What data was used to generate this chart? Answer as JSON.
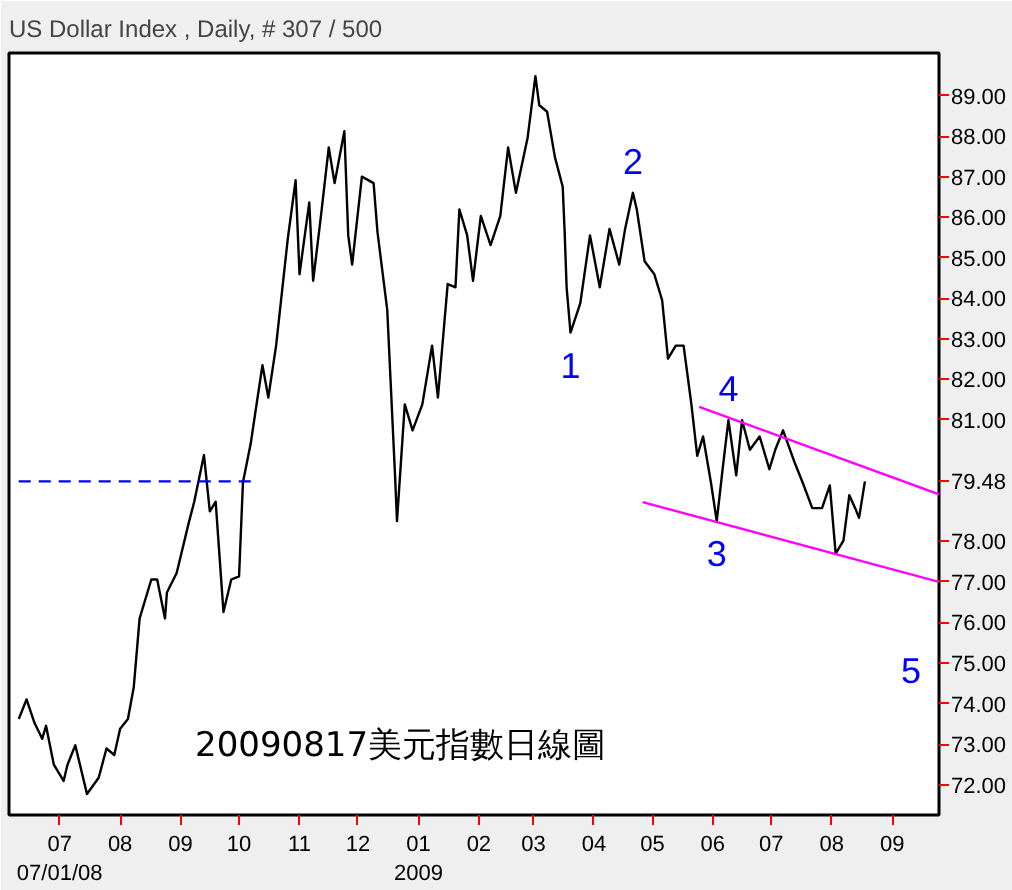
{
  "chart_data": {
    "type": "line",
    "title": "US Dollar Index , Daily, # 307 / 500",
    "x": [
      "2008-06-10",
      "2008-06-14",
      "2008-06-18",
      "2008-06-22",
      "2008-06-24",
      "2008-06-28",
      "2008-07-03",
      "2008-07-05",
      "2008-07-09",
      "2008-07-15",
      "2008-07-21",
      "2008-07-25",
      "2008-07-29",
      "2008-08-01",
      "2008-08-05",
      "2008-08-08",
      "2008-08-11",
      "2008-08-17",
      "2008-08-20",
      "2008-08-24",
      "2008-08-25",
      "2008-08-30",
      "2008-09-05",
      "2008-09-08",
      "2008-09-13",
      "2008-09-16",
      "2008-09-19",
      "2008-09-23",
      "2008-09-27",
      "2008-10-01",
      "2008-10-03",
      "2008-10-07",
      "2008-10-09",
      "2008-10-13",
      "2008-10-16",
      "2008-10-20",
      "2008-10-22",
      "2008-10-26",
      "2008-10-30",
      "2008-11-01",
      "2008-11-06",
      "2008-11-08",
      "2008-11-12",
      "2008-11-16",
      "2008-11-19",
      "2008-11-24",
      "2008-11-26",
      "2008-11-28",
      "2008-12-03",
      "2008-12-09",
      "2008-12-11",
      "2008-12-16",
      "2008-12-20",
      "2008-12-21",
      "2008-12-25",
      "2008-12-29",
      "2009-01-03",
      "2009-01-08",
      "2009-01-11",
      "2009-01-16",
      "2009-01-20",
      "2009-01-22",
      "2009-01-26",
      "2009-01-29",
      "2009-02-02",
      "2009-02-07",
      "2009-02-12",
      "2009-02-16",
      "2009-02-20",
      "2009-02-26",
      "2009-03-02",
      "2009-03-04",
      "2009-03-08",
      "2009-03-12",
      "2009-03-16",
      "2009-03-17",
      "2009-03-18",
      "2009-03-20",
      "2009-03-25",
      "2009-03-30",
      "2009-04-04",
      "2009-04-09",
      "2009-04-14",
      "2009-04-17",
      "2009-04-21",
      "2009-04-23",
      "2009-04-27",
      "2009-05-02",
      "2009-05-06",
      "2009-05-09",
      "2009-05-13",
      "2009-05-17",
      "2009-05-21",
      "2009-05-24",
      "2009-05-27",
      "2009-05-31",
      "2009-06-03",
      "2009-06-06",
      "2009-06-09",
      "2009-06-13",
      "2009-06-16",
      "2009-06-20",
      "2009-06-25",
      "2009-06-30",
      "2009-07-03",
      "2009-07-07",
      "2009-07-13",
      "2009-07-17",
      "2009-07-22",
      "2009-07-27",
      "2009-07-31",
      "2009-08-03",
      "2009-08-07",
      "2009-08-10",
      "2009-08-13",
      "2009-08-15",
      "2009-08-18"
    ],
    "series": [
      {
        "color": "#000000",
        "line_style": "solid",
        "values": [
          73.62,
          74.1,
          73.53,
          73.13,
          73.45,
          72.49,
          72.09,
          72.49,
          72.97,
          71.77,
          72.17,
          72.89,
          72.73,
          73.38,
          73.62,
          74.41,
          76.1,
          77.06,
          77.06,
          76.1,
          76.74,
          77.22,
          78.42,
          78.98,
          80.13,
          78.74,
          78.98,
          76.26,
          77.06,
          77.14,
          79.46,
          80.42,
          81.07,
          82.35,
          81.55,
          82.83,
          83.71,
          85.47,
          86.91,
          84.59,
          86.36,
          84.43,
          86.03,
          87.72,
          86.84,
          88.12,
          85.55,
          84.83,
          87.0,
          86.84,
          85.63,
          83.71,
          79.63,
          78.5,
          81.38,
          80.74,
          81.38,
          82.83,
          81.55,
          84.35,
          84.27,
          86.19,
          85.55,
          84.43,
          86.03,
          85.31,
          86.03,
          87.72,
          86.6,
          87.96,
          89.48,
          88.76,
          88.6,
          87.48,
          86.75,
          85.63,
          84.27,
          83.15,
          83.87,
          85.55,
          84.27,
          85.71,
          84.83,
          85.71,
          86.6,
          86.19,
          84.91,
          84.59,
          83.95,
          82.51,
          82.83,
          82.83,
          81.38,
          80.11,
          80.59,
          79.46,
          78.5,
          79.78,
          80.99,
          79.63,
          80.99,
          80.26,
          80.59,
          79.78,
          80.26,
          80.74,
          79.94,
          79.46,
          78.82,
          78.82,
          79.38,
          77.7,
          78.02,
          79.14,
          78.82,
          78.58,
          79.48
        ]
      },
      {
        "color": "#0000ff",
        "line_style": "dashed",
        "x": [
          "2008-06-10",
          "2008-10-08"
        ],
        "values": [
          79.48,
          79.48
        ]
      },
      {
        "color": "#ff00ff",
        "line_style": "solid",
        "x": [
          "2009-05-25",
          "2009-09-25"
        ],
        "values": [
          81.32,
          79.16
        ]
      },
      {
        "color": "#ff00ff",
        "line_style": "solid",
        "x": [
          "2009-04-26",
          "2009-09-25"
        ],
        "values": [
          78.97,
          77.0
        ]
      }
    ],
    "xlim": [
      "2008-06-05",
      "2009-09-25"
    ],
    "xticks": [
      {
        "value": "2008-07-01",
        "label": "07\n07/01/08"
      },
      {
        "value": "2008-08-01",
        "label": "08"
      },
      {
        "value": "2008-09-01",
        "label": "09"
      },
      {
        "value": "2008-10-01",
        "label": "10"
      },
      {
        "value": "2008-11-01",
        "label": "11"
      },
      {
        "value": "2008-12-01",
        "label": "12"
      },
      {
        "value": "2009-01-01",
        "label": "01\n2009"
      },
      {
        "value": "2009-02-01",
        "label": "02"
      },
      {
        "value": "2009-03-01",
        "label": "03"
      },
      {
        "value": "2009-04-01",
        "label": "04"
      },
      {
        "value": "2009-05-01",
        "label": "05"
      },
      {
        "value": "2009-06-01",
        "label": "06"
      },
      {
        "value": "2009-07-01",
        "label": "07"
      },
      {
        "value": "2009-08-01",
        "label": "08"
      },
      {
        "value": "2009-09-01",
        "label": "09"
      }
    ],
    "ylim": [
      71.25,
      90.05
    ],
    "yticks": [
      {
        "value": 72,
        "label": "72.00"
      },
      {
        "value": 73,
        "label": "73.00"
      },
      {
        "value": 74,
        "label": "74.00"
      },
      {
        "value": 75,
        "label": "75.00"
      },
      {
        "value": 76,
        "label": "76.00"
      },
      {
        "value": 77,
        "label": "77.00"
      },
      {
        "value": 78,
        "label": "78.00"
      },
      {
        "value": 79.48,
        "label": "79.48"
      },
      {
        "value": 81,
        "label": "81.00"
      },
      {
        "value": 82,
        "label": "82.00"
      },
      {
        "value": 83,
        "label": "83.00"
      },
      {
        "value": 84,
        "label": "84.00"
      },
      {
        "value": 85,
        "label": "85.00"
      },
      {
        "value": 86,
        "label": "86.00"
      },
      {
        "value": 87,
        "label": "87.00"
      },
      {
        "value": 88,
        "label": "88.00"
      },
      {
        "value": 89,
        "label": "89.00"
      }
    ],
    "annotations": [
      {
        "text": "1",
        "x": "2009-03-20",
        "y": 83.15
      },
      {
        "text": "2",
        "x": "2009-04-21",
        "y": 86.6
      },
      {
        "text": "3",
        "x": "2009-06-03",
        "y": 78.5
      },
      {
        "text": "4",
        "x": "2009-06-09",
        "y": 80.99
      },
      "5",
      "20090817美元指數日線圖"
    ],
    "grid": false,
    "marker": "none"
  }
}
